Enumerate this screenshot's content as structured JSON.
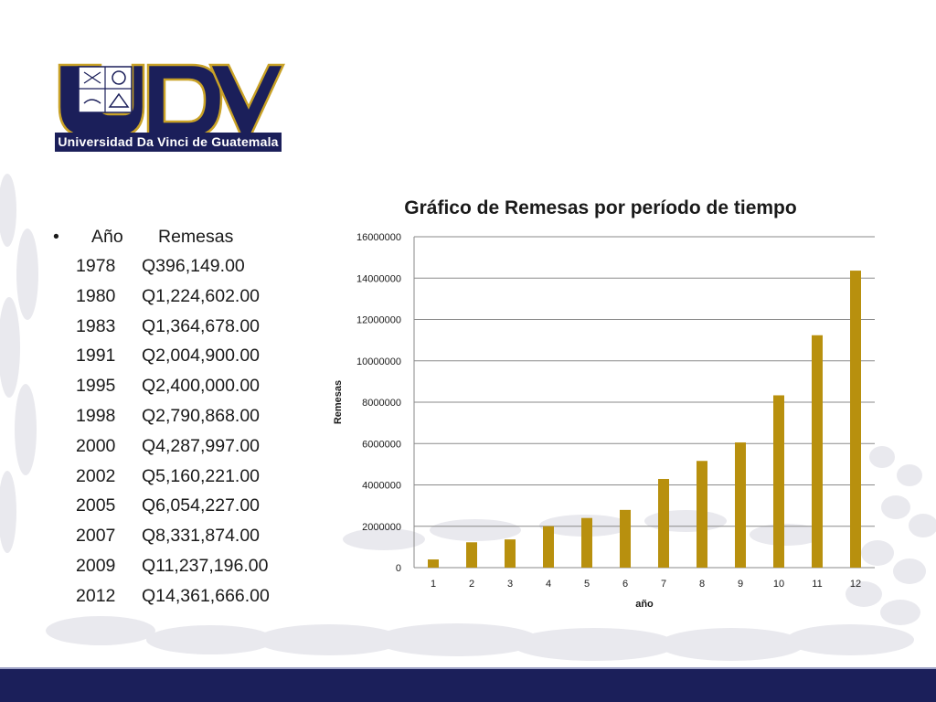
{
  "logo": {
    "letters": "UDV",
    "tagline": "Universidad Da Vinci de Guatemala"
  },
  "colors": {
    "navy": "#1b1f5a",
    "gold": "#c9a227",
    "bar": "#b8900e"
  },
  "table": {
    "bullet": "•",
    "year_header": "Año",
    "value_header": "Remesas",
    "rows": [
      {
        "year": "1978",
        "value": "Q396,149.00"
      },
      {
        "year": "1980",
        "value": "Q1,224,602.00"
      },
      {
        "year": "1983",
        "value": "Q1,364,678.00"
      },
      {
        "year": "1991",
        "value": "Q2,004,900.00"
      },
      {
        "year": "1995",
        "value": "Q2,400,000.00"
      },
      {
        "year": "1998",
        "value": "Q2,790,868.00"
      },
      {
        "year": "2000",
        "value": "Q4,287,997.00"
      },
      {
        "year": "2002",
        "value": "Q5,160,221.00"
      },
      {
        "year": "2005",
        "value": "Q6,054,227.00"
      },
      {
        "year": "2007",
        "value": "Q8,331,874.00"
      },
      {
        "year": "2009",
        "value": "Q11,237,196.00"
      },
      {
        "year": "2012",
        "value": "Q14,361,666.00"
      }
    ]
  },
  "chart_data": {
    "type": "bar",
    "title": "Gráfico de Remesas por período de tiempo",
    "xlabel": "año",
    "ylabel": "Remesas",
    "categories": [
      "1",
      "2",
      "3",
      "4",
      "5",
      "6",
      "7",
      "8",
      "9",
      "10",
      "11",
      "12"
    ],
    "values": [
      396149,
      1224602,
      1364678,
      2004900,
      2400000,
      2790868,
      4287997,
      5160221,
      6054227,
      8331874,
      11237196,
      14361666
    ],
    "ylim": [
      0,
      16000000
    ],
    "yticks": [
      "0",
      "2000000",
      "4000000",
      "6000000",
      "8000000",
      "10000000",
      "12000000",
      "14000000",
      "16000000"
    ],
    "grid": true,
    "legend": "none"
  }
}
